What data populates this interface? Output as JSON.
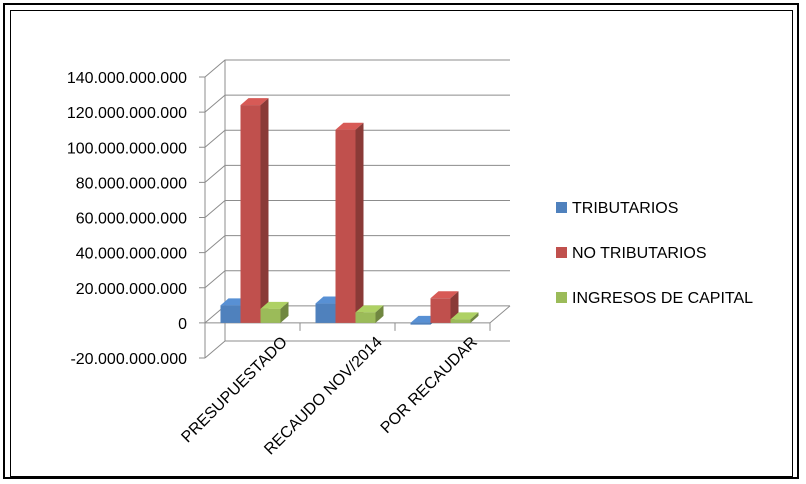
{
  "chart_data": {
    "type": "bar",
    "title": "",
    "xlabel": "",
    "ylabel": "",
    "categories": [
      "PRESUPUESTADO",
      "RECAUDO NOV/2014",
      "POR RECAUDAR"
    ],
    "series": [
      {
        "name": "TRIBUTARIOS",
        "values": [
          10000000000,
          11000000000,
          -1000000000
        ],
        "color": "#4F81BD"
      },
      {
        "name": "NO TRIBUTARIOS",
        "values": [
          124000000000,
          110000000000,
          14000000000
        ],
        "color": "#C0504D"
      },
      {
        "name": "INGRESOS DE CAPITAL",
        "values": [
          8000000000,
          6000000000,
          2000000000
        ],
        "color": "#9BBB59"
      }
    ],
    "y_ticks": [
      {
        "value": 140000000000,
        "label": "140.000.000.000"
      },
      {
        "value": 120000000000,
        "label": "120.000.000.000"
      },
      {
        "value": 100000000000,
        "label": "100.000.000.000"
      },
      {
        "value": 80000000000,
        "label": "80.000.000.000"
      },
      {
        "value": 60000000000,
        "label": "60.000.000.000"
      },
      {
        "value": 40000000000,
        "label": "40.000.000.000"
      },
      {
        "value": 20000000000,
        "label": "20.000.000.000"
      },
      {
        "value": 0,
        "label": "0"
      },
      {
        "value": -20000000000,
        "label": "-20.000.000.000"
      }
    ],
    "ylim": [
      -20000000000,
      140000000000
    ],
    "grid": true,
    "style": "3d-clustered-column",
    "legend_position": "right"
  }
}
